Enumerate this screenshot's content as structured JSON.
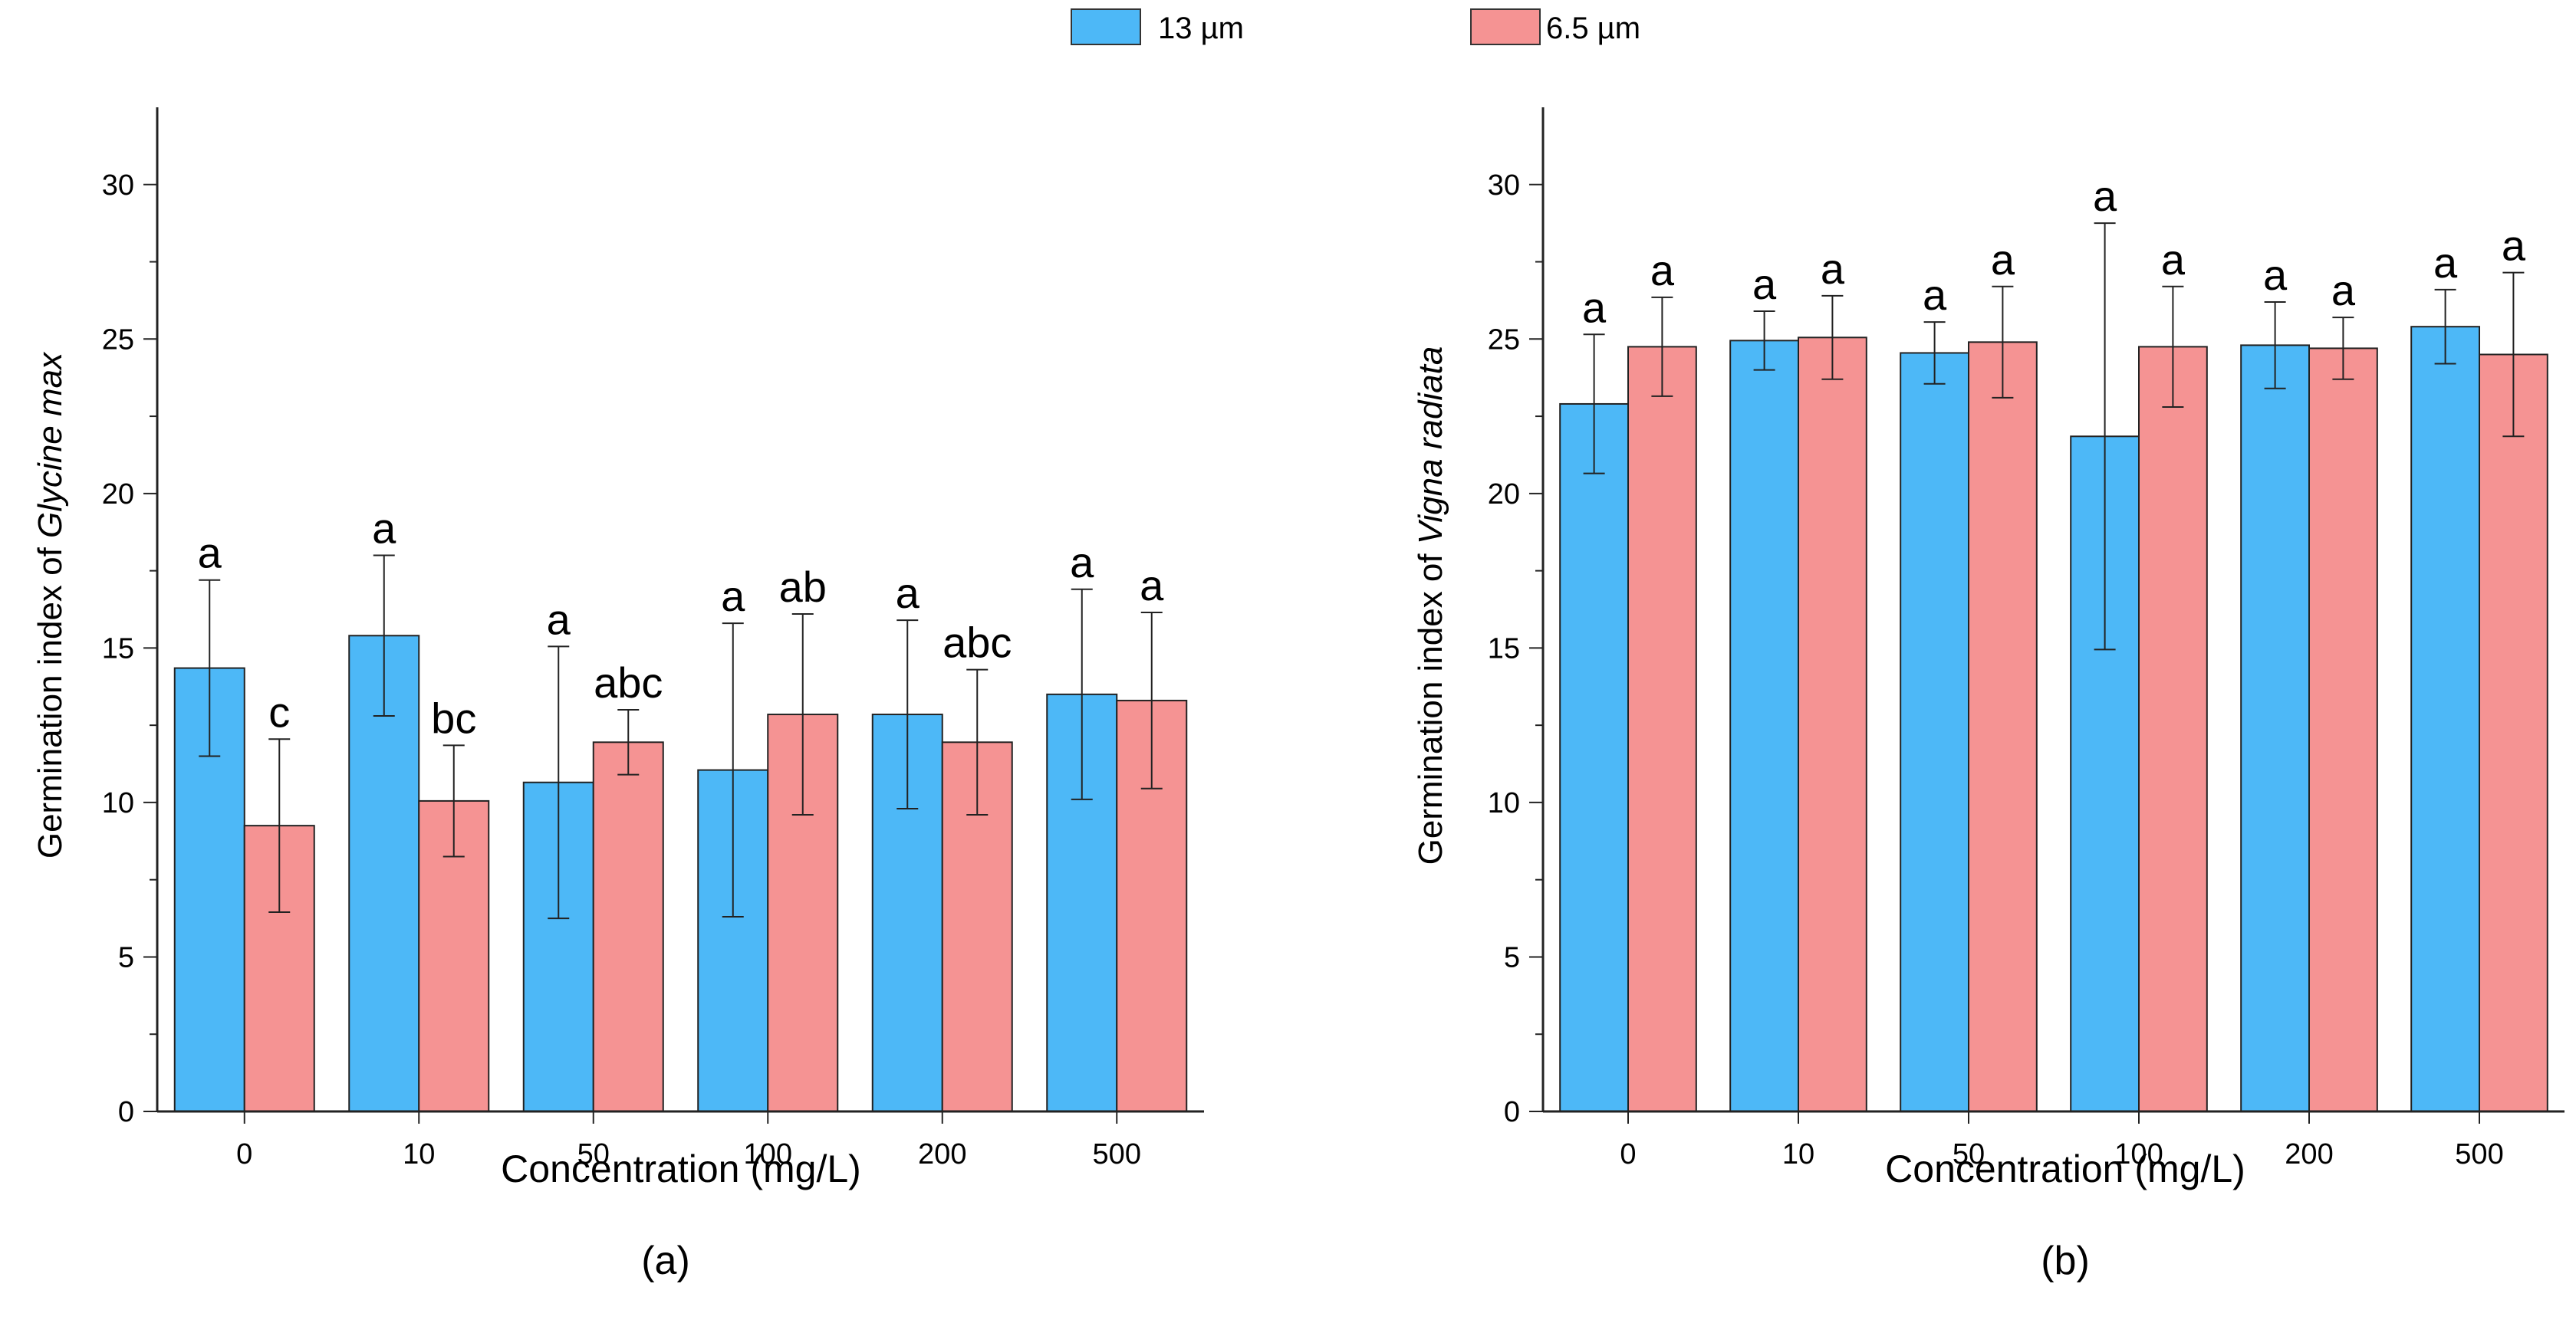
{
  "legend": [
    {
      "name": "13 µm",
      "color": "#4db8f7"
    },
    {
      "name": "6.5 µm",
      "color": "#f59393"
    }
  ],
  "chart_data": [
    {
      "type": "bar",
      "panel_label": "(a)",
      "xlabel": "Concentration (mg/L)",
      "ylabel_prefix": "Germination index of ",
      "ylabel_italic": "Glycine max",
      "categories": [
        "0",
        "10",
        "50",
        "100",
        "200",
        "500"
      ],
      "ylim": [
        0,
        32.5
      ],
      "yticks": [
        0,
        5,
        10,
        15,
        20,
        25,
        30
      ],
      "series": [
        {
          "name": "13 µm",
          "values": [
            14.35,
            15.4,
            10.65,
            11.05,
            12.85,
            13.5
          ],
          "errors": [
            2.85,
            2.6,
            4.4,
            4.75,
            3.05,
            3.4
          ],
          "letters": [
            "a",
            "a",
            "a",
            "a",
            "a",
            "a"
          ]
        },
        {
          "name": "6.5 µm",
          "values": [
            9.25,
            10.05,
            11.95,
            12.85,
            11.95,
            13.3
          ],
          "errors": [
            2.8,
            1.8,
            1.05,
            3.25,
            2.35,
            2.85
          ],
          "letters": [
            "c",
            "bc",
            "abc",
            "ab",
            "abc",
            "a"
          ]
        }
      ]
    },
    {
      "type": "bar",
      "panel_label": "(b)",
      "xlabel": "Concentration (mg/L)",
      "ylabel_prefix": "Germination index of ",
      "ylabel_italic": "Vigna radiata",
      "categories": [
        "0",
        "10",
        "50",
        "100",
        "200",
        "500"
      ],
      "ylim": [
        0,
        32.5
      ],
      "yticks": [
        0,
        5,
        10,
        15,
        20,
        25,
        30
      ],
      "series": [
        {
          "name": "13 µm",
          "values": [
            22.9,
            24.95,
            24.55,
            21.85,
            24.8,
            25.4
          ],
          "errors": [
            2.25,
            0.95,
            1.0,
            6.9,
            1.4,
            1.2
          ],
          "letters": [
            "a",
            "a",
            "a",
            "a",
            "a",
            "a"
          ]
        },
        {
          "name": "6.5 µm",
          "values": [
            24.75,
            25.05,
            24.9,
            24.75,
            24.7,
            24.5
          ],
          "errors": [
            1.6,
            1.35,
            1.8,
            1.95,
            1.0,
            2.65
          ],
          "letters": [
            "a",
            "a",
            "a",
            "a",
            "a",
            "a"
          ]
        }
      ]
    }
  ]
}
